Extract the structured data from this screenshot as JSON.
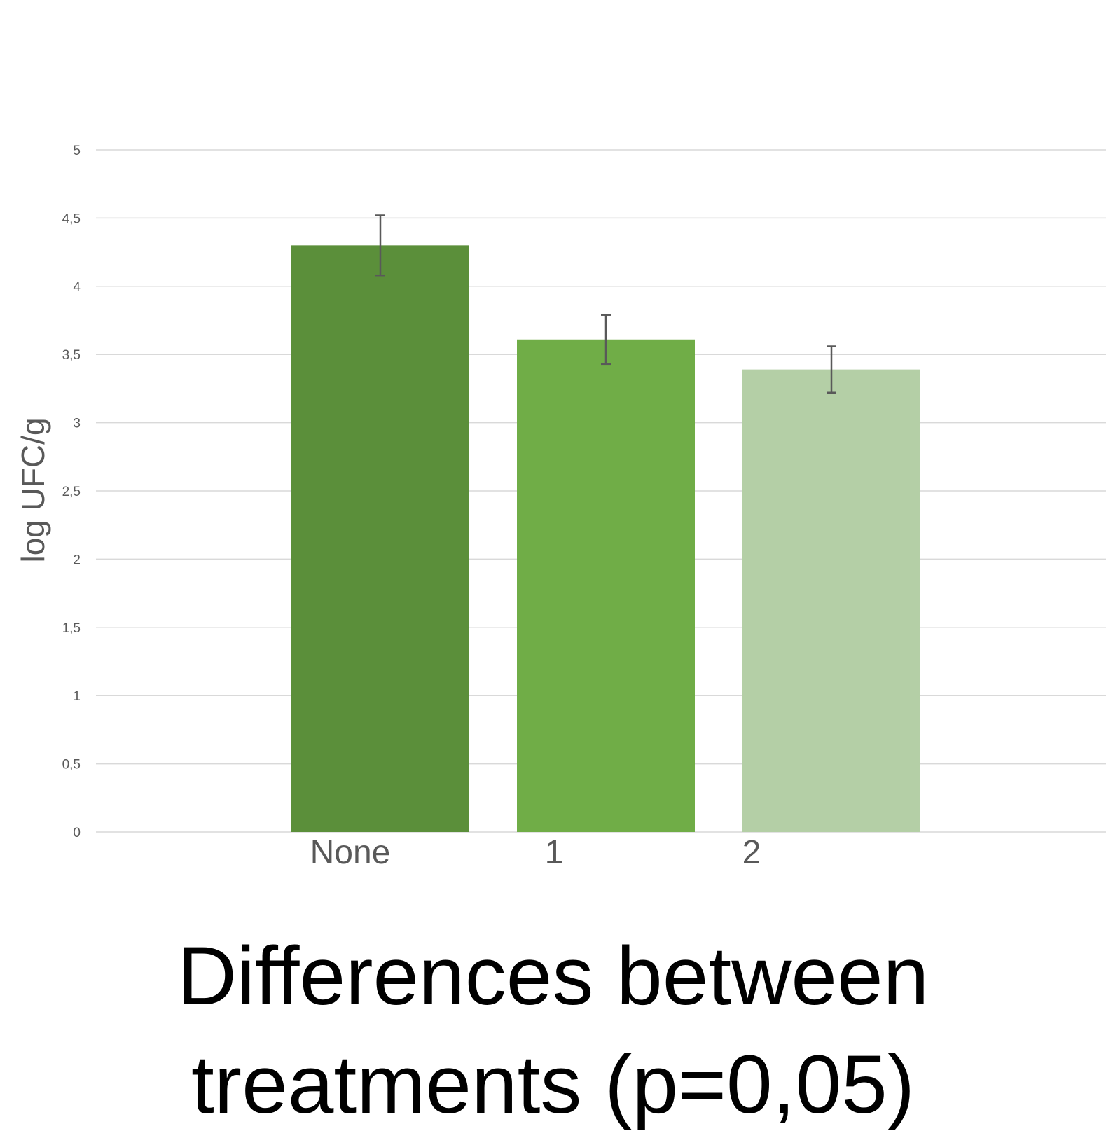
{
  "chart_data": {
    "type": "bar",
    "title": "",
    "xlabel": "",
    "ylabel": "log UFC/g",
    "categories": [
      "None",
      "1",
      "2"
    ],
    "values": [
      4.3,
      3.61,
      3.39
    ],
    "error": [
      0.22,
      0.18,
      0.17
    ],
    "colors": [
      "#5b8f3a",
      "#70ad47",
      "#b4cfa6"
    ],
    "ylim": [
      0,
      5
    ],
    "yticks": [
      0,
      0.5,
      1,
      1.5,
      2,
      2.5,
      3,
      3.5,
      4,
      4.5,
      5
    ],
    "ytick_labels": [
      "0",
      "0,5",
      "1",
      "1,5",
      "2",
      "2,5",
      "3",
      "3,5",
      "4",
      "4,5",
      "5"
    ],
    "grid": true,
    "legend": "none"
  },
  "caption": {
    "line1": "Differences between",
    "line2": "treatments (p=0,05)"
  }
}
